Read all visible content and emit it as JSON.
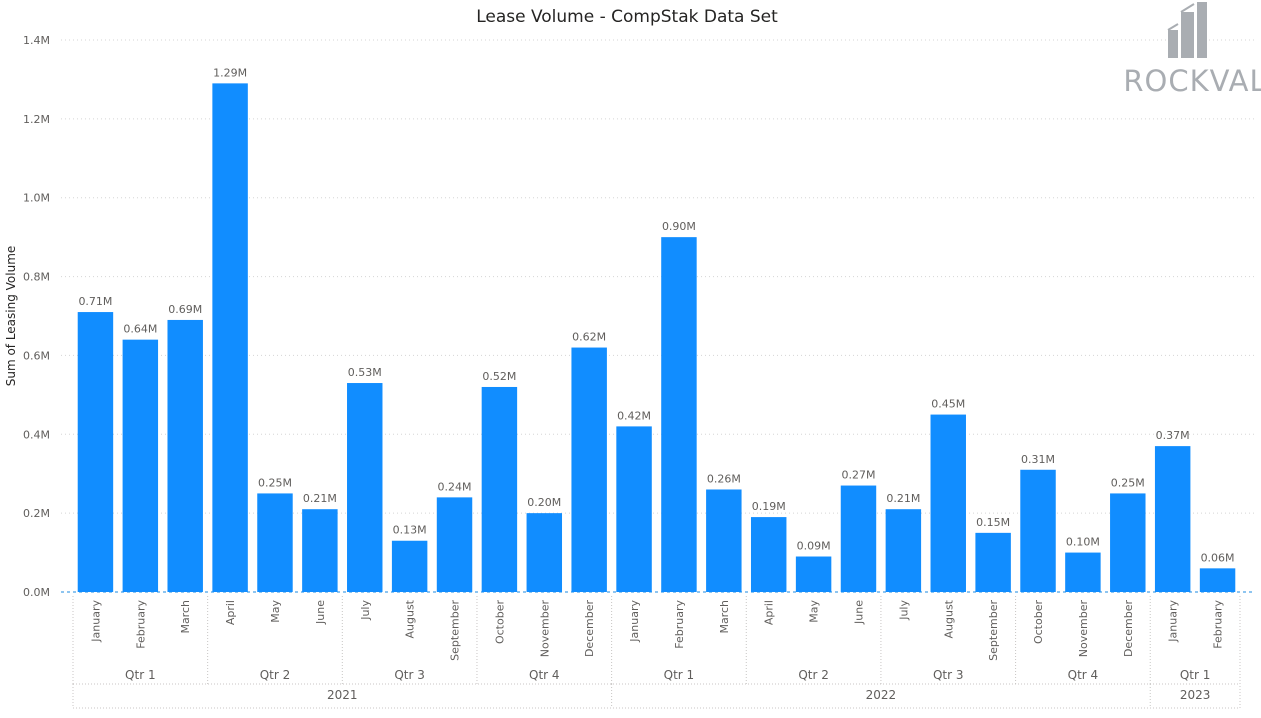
{
  "chart_data": {
    "type": "bar",
    "title": "Lease Volume - CompStak Data Set",
    "ylabel": "Sum of Leasing Volume",
    "ylim": [
      0,
      1400000
    ],
    "yticks": [
      {
        "value": 0,
        "label": "0.0M"
      },
      {
        "value": 200000,
        "label": "0.2M"
      },
      {
        "value": 400000,
        "label": "0.4M"
      },
      {
        "value": 600000,
        "label": "0.6M"
      },
      {
        "value": 800000,
        "label": "0.8M"
      },
      {
        "value": 1000000,
        "label": "1.0M"
      },
      {
        "value": 1200000,
        "label": "1.2M"
      },
      {
        "value": 1400000,
        "label": "1.4M"
      }
    ],
    "grid": true,
    "bar_color": "#118dff",
    "categories": [
      "January",
      "February",
      "March",
      "April",
      "May",
      "June",
      "July",
      "August",
      "September",
      "October",
      "November",
      "December",
      "January",
      "February",
      "March",
      "April",
      "May",
      "June",
      "July",
      "August",
      "September",
      "October",
      "November",
      "December",
      "January",
      "February"
    ],
    "values": [
      710000,
      640000,
      690000,
      1290000,
      250000,
      210000,
      530000,
      130000,
      240000,
      520000,
      200000,
      620000,
      420000,
      900000,
      260000,
      190000,
      90000,
      270000,
      210000,
      450000,
      150000,
      310000,
      100000,
      250000,
      370000,
      60000
    ],
    "data_labels": [
      "0.71M",
      "0.64M",
      "0.69M",
      "1.29M",
      "0.25M",
      "0.21M",
      "0.53M",
      "0.13M",
      "0.24M",
      "0.52M",
      "0.20M",
      "0.62M",
      "0.42M",
      "0.90M",
      "0.26M",
      "0.19M",
      "0.09M",
      "0.27M",
      "0.21M",
      "0.45M",
      "0.15M",
      "0.31M",
      "0.10M",
      "0.25M",
      "0.37M",
      "0.06M"
    ],
    "quarters": [
      {
        "label": "Qtr 1",
        "start": 0,
        "count": 3
      },
      {
        "label": "Qtr 2",
        "start": 3,
        "count": 3
      },
      {
        "label": "Qtr 3",
        "start": 6,
        "count": 3
      },
      {
        "label": "Qtr 4",
        "start": 9,
        "count": 3
      },
      {
        "label": "Qtr 1",
        "start": 12,
        "count": 3
      },
      {
        "label": "Qtr 2",
        "start": 15,
        "count": 3
      },
      {
        "label": "Qtr 3",
        "start": 18,
        "count": 3
      },
      {
        "label": "Qtr 4",
        "start": 21,
        "count": 3
      },
      {
        "label": "Qtr 1",
        "start": 24,
        "count": 2
      }
    ],
    "years": [
      {
        "label": "2021",
        "start": 0,
        "count": 12
      },
      {
        "label": "2022",
        "start": 12,
        "count": 12
      },
      {
        "label": "2023",
        "start": 24,
        "count": 2
      }
    ]
  },
  "logo": {
    "text": "ROCKVAL",
    "color": "#a9adb2"
  }
}
